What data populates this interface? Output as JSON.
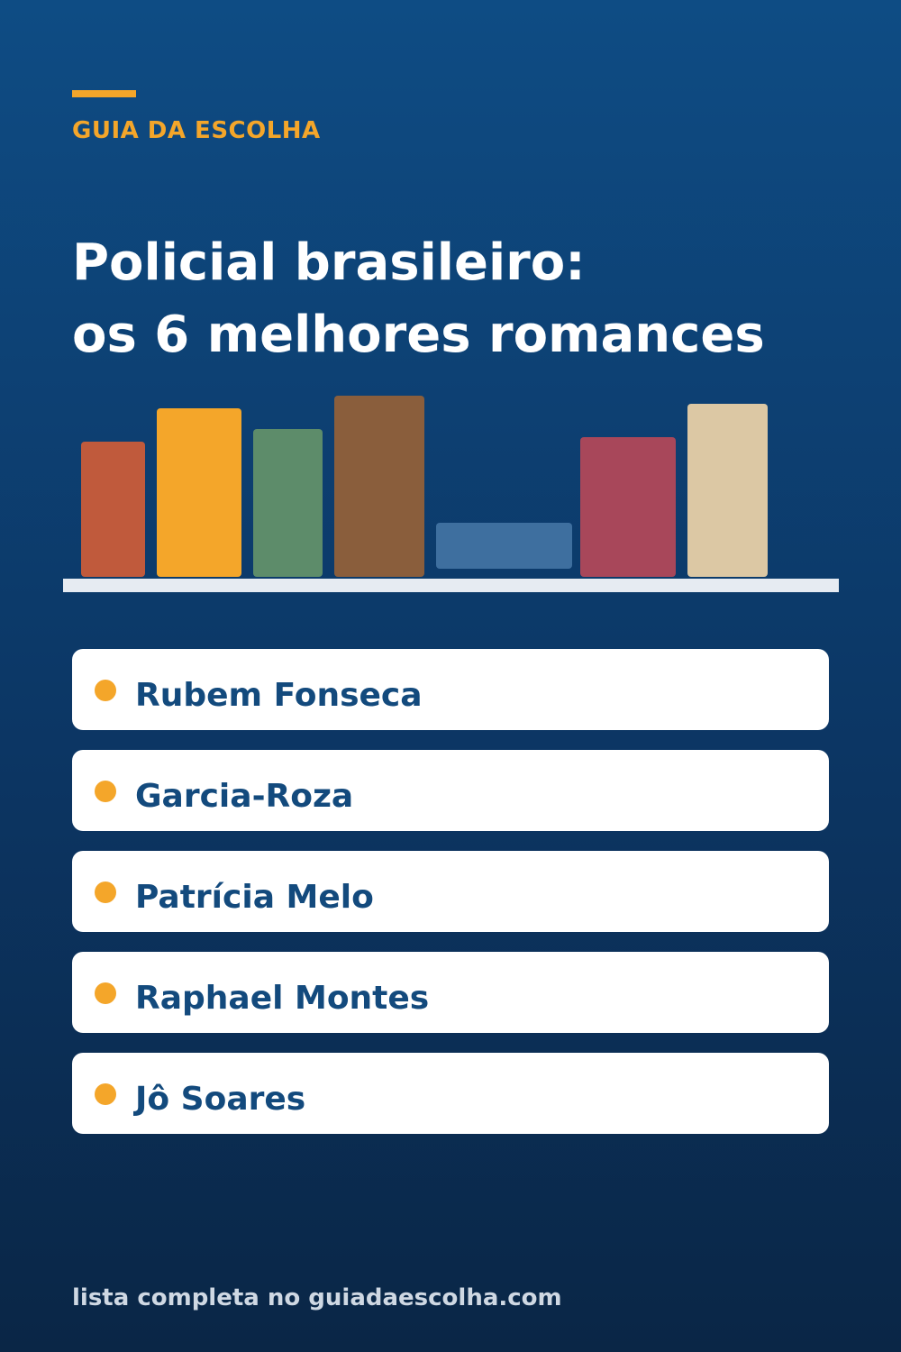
{
  "brand": "GUIA DA ESCOLHA",
  "title": {
    "line1": "Policial brasileiro:",
    "line2": "os 6 melhores romances"
  },
  "colors": {
    "accent": "#f4a62a",
    "background_top": "#0e4c84",
    "background_bottom": "#0a2646",
    "item_text": "#134a7d",
    "shelf": "#e6ebf2"
  },
  "books": [
    {
      "color": "#c05a3c"
    },
    {
      "color": "#f4a62a"
    },
    {
      "color": "#5d8c6a"
    },
    {
      "color": "#8a5e3c"
    },
    {
      "color": "#3e6f9f"
    },
    {
      "color": "#a8475a"
    },
    {
      "color": "#dcc8a4"
    }
  ],
  "items": [
    {
      "label": "Rubem Fonseca"
    },
    {
      "label": "Garcia-Roza"
    },
    {
      "label": "Patrícia Melo"
    },
    {
      "label": "Raphael Montes"
    },
    {
      "label": "Jô Soares"
    }
  ],
  "footer": "lista completa no guiadaescolha.com"
}
